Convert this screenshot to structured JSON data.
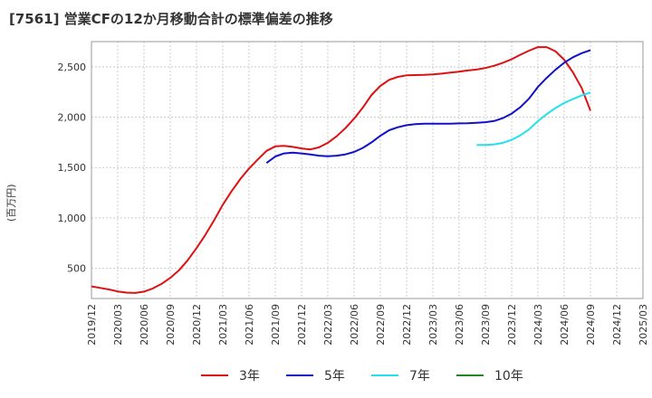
{
  "title": "[7561]  営業CFの12か月移動合計の標準偏差の推移",
  "chart_data": {
    "type": "line",
    "ylabel": "(百万円)",
    "xlabel": "",
    "ylim": [
      200,
      2750
    ],
    "xlim": [
      "2019-12",
      "2025-03"
    ],
    "y_ticks": [
      "500",
      "1,000",
      "1,500",
      "2,000",
      "2,500"
    ],
    "y_tick_values": [
      500,
      1000,
      1500,
      2000,
      2500
    ],
    "x_ticks": [
      "2019/12",
      "2020/03",
      "2020/06",
      "2020/09",
      "2020/12",
      "2021/03",
      "2021/06",
      "2021/09",
      "2021/12",
      "2022/03",
      "2022/06",
      "2022/09",
      "2022/12",
      "2023/03",
      "2023/06",
      "2023/09",
      "2023/12",
      "2024/03",
      "2024/06",
      "2024/09",
      "2024/12",
      "2025/03"
    ],
    "grid": true,
    "legend_position": "bottom",
    "series": [
      {
        "name": "3年",
        "color": "#dd1111",
        "x": [
          "2019-12",
          "2020-01",
          "2020-02",
          "2020-03",
          "2020-04",
          "2020-05",
          "2020-06",
          "2020-07",
          "2020-08",
          "2020-09",
          "2020-10",
          "2020-11",
          "2020-12",
          "2021-01",
          "2021-02",
          "2021-03",
          "2021-04",
          "2021-05",
          "2021-06",
          "2021-07",
          "2021-08",
          "2021-09",
          "2021-10",
          "2021-11",
          "2021-12",
          "2022-01",
          "2022-02",
          "2022-03",
          "2022-04",
          "2022-05",
          "2022-06",
          "2022-07",
          "2022-08",
          "2022-09",
          "2022-10",
          "2022-11",
          "2022-12",
          "2023-01",
          "2023-02",
          "2023-03",
          "2023-04",
          "2023-05",
          "2023-06",
          "2023-07",
          "2023-08",
          "2023-09",
          "2023-10",
          "2023-11",
          "2023-12",
          "2024-01",
          "2024-02",
          "2024-03",
          "2024-04",
          "2024-05",
          "2024-06",
          "2024-07",
          "2024-08",
          "2024-09"
        ],
        "values": [
          320,
          305,
          290,
          270,
          258,
          255,
          268,
          300,
          345,
          405,
          480,
          580,
          700,
          830,
          975,
          1130,
          1265,
          1385,
          1490,
          1580,
          1665,
          1710,
          1715,
          1705,
          1690,
          1680,
          1700,
          1745,
          1810,
          1890,
          1985,
          2095,
          2220,
          2310,
          2370,
          2400,
          2415,
          2418,
          2420,
          2424,
          2432,
          2442,
          2452,
          2464,
          2473,
          2488,
          2510,
          2540,
          2575,
          2620,
          2660,
          2695,
          2695,
          2655,
          2570,
          2445,
          2290,
          2065
        ]
      },
      {
        "name": "5年",
        "color": "#1111cc",
        "x": [
          "2021-08",
          "2021-09",
          "2021-10",
          "2021-11",
          "2021-12",
          "2022-01",
          "2022-02",
          "2022-03",
          "2022-04",
          "2022-05",
          "2022-06",
          "2022-07",
          "2022-08",
          "2022-09",
          "2022-10",
          "2022-11",
          "2022-12",
          "2023-01",
          "2023-02",
          "2023-03",
          "2023-04",
          "2023-05",
          "2023-06",
          "2023-07",
          "2023-08",
          "2023-09",
          "2023-10",
          "2023-11",
          "2023-12",
          "2024-01",
          "2024-02",
          "2024-03",
          "2024-04",
          "2024-05",
          "2024-06",
          "2024-07",
          "2024-08",
          "2024-09"
        ],
        "values": [
          1545,
          1610,
          1640,
          1648,
          1640,
          1630,
          1618,
          1612,
          1618,
          1630,
          1655,
          1695,
          1750,
          1815,
          1870,
          1900,
          1920,
          1930,
          1935,
          1935,
          1935,
          1936,
          1938,
          1940,
          1945,
          1950,
          1962,
          1990,
          2035,
          2100,
          2185,
          2300,
          2390,
          2470,
          2540,
          2595,
          2635,
          2665
        ]
      },
      {
        "name": "7年",
        "color": "#22e0ee",
        "x": [
          "2023-08",
          "2023-09",
          "2023-10",
          "2023-11",
          "2023-12",
          "2024-01",
          "2024-02",
          "2024-03",
          "2024-04",
          "2024-05",
          "2024-06",
          "2024-07",
          "2024-08",
          "2024-09"
        ],
        "values": [
          1725,
          1725,
          1730,
          1745,
          1775,
          1820,
          1880,
          1960,
          2030,
          2090,
          2140,
          2180,
          2215,
          2245
        ]
      },
      {
        "name": "10年",
        "color": "#228822",
        "x": [],
        "values": []
      }
    ]
  }
}
